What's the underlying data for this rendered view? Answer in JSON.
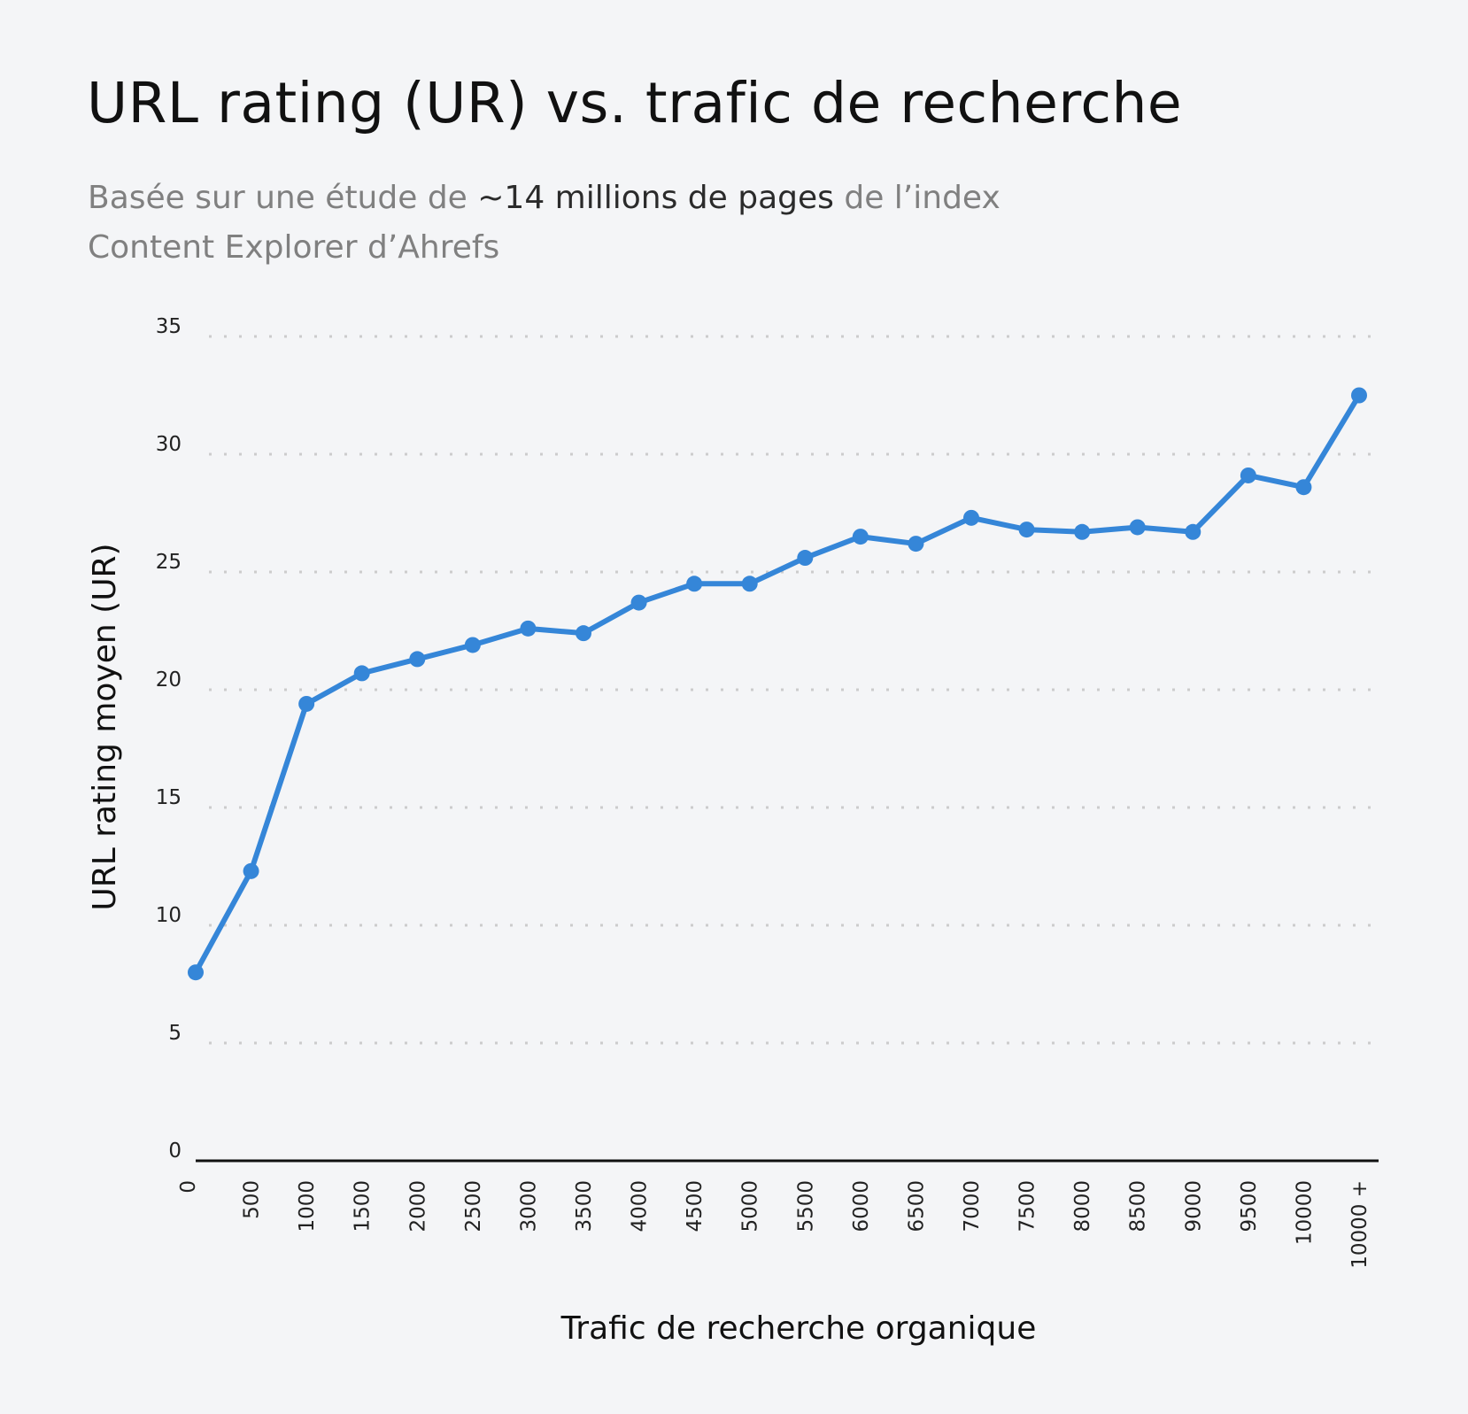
{
  "title": "URL rating (UR) vs. trafic de recherche",
  "subtitle": {
    "part1": "Basée sur une étude de ",
    "emphasis": "~14 millions de pages",
    "part2": " de l’index Content Explorer d’Ahrefs"
  },
  "colors": {
    "line": "#3586d8",
    "grid": "#cccccc",
    "background": "#f4f5f7",
    "axis": "#111111"
  },
  "chart_data": {
    "type": "line",
    "title": "URL rating (UR) vs. trafic de recherche",
    "xlabel": "Trafic de recherche organique",
    "ylabel": "URL rating moyen (UR)",
    "categories": [
      "0",
      "500",
      "1000",
      "1500",
      "2000",
      "2500",
      "3000",
      "3500",
      "4000",
      "4500",
      "5000",
      "5500",
      "6000",
      "6500",
      "7000",
      "7500",
      "8000",
      "8500",
      "9000",
      "9500",
      "10000",
      "10000 +"
    ],
    "series": [
      {
        "values": [
          8.0,
          12.3,
          19.4,
          20.7,
          21.3,
          21.9,
          22.6,
          22.4,
          23.7,
          24.5,
          24.5,
          25.6,
          26.5,
          26.2,
          27.3,
          26.8,
          26.7,
          26.9,
          26.7,
          29.1,
          28.6,
          32.5
        ]
      }
    ],
    "ylim": [
      0,
      35
    ],
    "yticks": [
      "0",
      "5",
      "10",
      "15",
      "20",
      "25",
      "30",
      "35"
    ],
    "grid": "horizontal dotted",
    "legend": "none"
  }
}
